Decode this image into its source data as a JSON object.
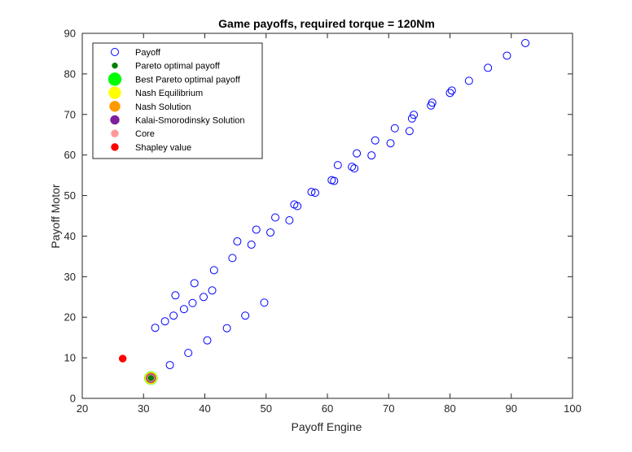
{
  "chart_data": {
    "type": "scatter",
    "title": "Game payoffs, required torque = 120Nm",
    "xlabel": "Payoff Engine",
    "ylabel": "Payoff Motor",
    "xlim": [
      20,
      100
    ],
    "ylim": [
      0,
      90
    ],
    "xticks": [
      20,
      30,
      40,
      50,
      60,
      70,
      80,
      90,
      100
    ],
    "yticks": [
      0,
      10,
      20,
      30,
      40,
      50,
      60,
      70,
      80,
      90
    ],
    "grid": false,
    "legend_position": "top-left",
    "series": [
      {
        "name": "Payoff",
        "color": "#0000ff",
        "marker": "open-circle",
        "points": [
          [
            31.2,
            5.0
          ],
          [
            34.3,
            8.2
          ],
          [
            37.3,
            11.2
          ],
          [
            40.4,
            14.3
          ],
          [
            43.6,
            17.3
          ],
          [
            46.6,
            20.4
          ],
          [
            49.7,
            23.6
          ],
          [
            31.9,
            17.4
          ],
          [
            33.5,
            19.0
          ],
          [
            34.9,
            20.4
          ],
          [
            36.6,
            22.0
          ],
          [
            38.0,
            23.5
          ],
          [
            39.8,
            25.0
          ],
          [
            41.2,
            26.6
          ],
          [
            35.2,
            25.4
          ],
          [
            38.3,
            28.4
          ],
          [
            41.5,
            31.6
          ],
          [
            44.5,
            34.6
          ],
          [
            45.3,
            38.7
          ],
          [
            47.6,
            37.9
          ],
          [
            48.4,
            41.6
          ],
          [
            50.7,
            40.9
          ],
          [
            51.5,
            44.6
          ],
          [
            53.8,
            43.9
          ],
          [
            54.6,
            47.8
          ],
          [
            55.1,
            47.4
          ],
          [
            57.4,
            50.9
          ],
          [
            58.0,
            50.7
          ],
          [
            60.7,
            53.8
          ],
          [
            61.1,
            53.6
          ],
          [
            61.7,
            57.5
          ],
          [
            64.0,
            57.1
          ],
          [
            64.4,
            56.7
          ],
          [
            64.8,
            60.4
          ],
          [
            67.2,
            59.9
          ],
          [
            67.8,
            63.6
          ],
          [
            70.3,
            62.9
          ],
          [
            71.0,
            66.6
          ],
          [
            73.4,
            65.9
          ],
          [
            73.8,
            69.0
          ],
          [
            74.1,
            69.9
          ],
          [
            76.9,
            72.2
          ],
          [
            77.1,
            72.9
          ],
          [
            80.0,
            75.3
          ],
          [
            80.3,
            75.9
          ],
          [
            83.1,
            78.3
          ],
          [
            86.2,
            81.5
          ],
          [
            89.3,
            84.5
          ],
          [
            92.3,
            87.6
          ]
        ]
      },
      {
        "name": "Pareto optimal payoff",
        "color": "#008000",
        "marker": "filled-circle",
        "points": [
          [
            31.2,
            5.0
          ]
        ]
      },
      {
        "name": "Best Pareto optimal payoff",
        "color": "#00ff00",
        "marker": "filled-circle",
        "points": [
          [
            31.2,
            5.0
          ]
        ]
      },
      {
        "name": "Nash Equilibrium",
        "color": "#ffff00",
        "marker": "filled-circle",
        "points": [
          [
            31.2,
            5.0
          ]
        ]
      },
      {
        "name": "Nash Solution",
        "color": "#ff9900",
        "marker": "filled-circle",
        "points": [
          [
            31.2,
            5.0
          ]
        ]
      },
      {
        "name": "Kalai-Smorodinsky Solution",
        "color": "#7e1e9c",
        "marker": "filled-circle",
        "points": [
          [
            31.2,
            5.0
          ]
        ]
      },
      {
        "name": "Core",
        "color": "#ff9999",
        "marker": "filled-circle",
        "points": [
          [
            31.2,
            5.0
          ]
        ]
      },
      {
        "name": "Shapley value",
        "color": "#ff0000",
        "marker": "filled-circle",
        "points": [
          [
            26.6,
            9.8
          ]
        ]
      }
    ]
  }
}
